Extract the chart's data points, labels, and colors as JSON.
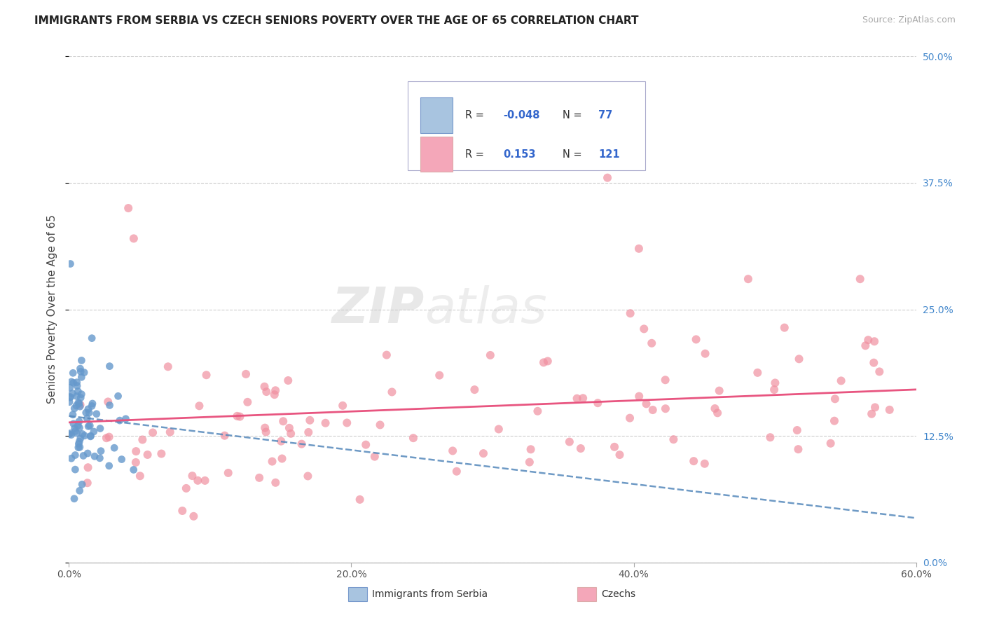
{
  "title": "IMMIGRANTS FROM SERBIA VS CZECH SENIORS POVERTY OVER THE AGE OF 65 CORRELATION CHART",
  "source": "Source: ZipAtlas.com",
  "ylabel_label": "Seniors Poverty Over the Age of 65",
  "watermark_zip": "ZIP",
  "watermark_atlas": "atlas",
  "serbia_color": "#a8c4e0",
  "czechs_color": "#f4a7b9",
  "serbia_line_color": "#5588bb",
  "czechs_line_color": "#e85580",
  "serbia_marker_color": "#6699cc",
  "czechs_marker_color": "#f090a0",
  "legend_text_color": "#3366cc",
  "xlim": [
    0.0,
    0.6
  ],
  "ylim": [
    0.0,
    0.5
  ],
  "serbia_R": -0.048,
  "czechs_R": 0.153,
  "serbia_N": 77,
  "czechs_N": 121
}
